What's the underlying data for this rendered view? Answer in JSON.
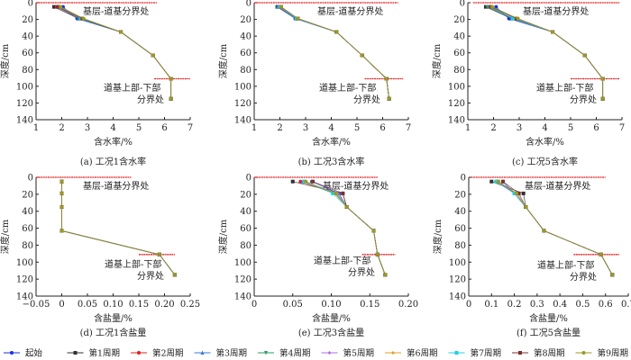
{
  "legend": [
    {
      "name": "起始",
      "color": "#1a2fe0",
      "marker": "circle"
    },
    {
      "name": "第1周期",
      "color": "#303030",
      "marker": "square"
    },
    {
      "name": "第2周期",
      "color": "#e02020",
      "marker": "circle"
    },
    {
      "name": "第3周期",
      "color": "#3a7bd5",
      "marker": "triangle-up"
    },
    {
      "name": "第4周期",
      "color": "#2a9d6a",
      "marker": "triangle-down"
    },
    {
      "name": "第5周期",
      "color": "#b06be0",
      "marker": "diamond"
    },
    {
      "name": "第6周期",
      "color": "#e0a020",
      "marker": "diamond"
    },
    {
      "name": "第7周期",
      "color": "#20d0e0",
      "marker": "square"
    },
    {
      "name": "第8周期",
      "color": "#7a3030",
      "marker": "square"
    },
    {
      "name": "第9周期",
      "color": "#9a9a20",
      "marker": "circle"
    }
  ],
  "chart_data": [
    {
      "type": "line",
      "caption": "(a)  工况1含水率",
      "xlabel": "含水率/%",
      "ylabel": "深度/cm",
      "xlim": [
        1,
        7
      ],
      "xticks": [
        1,
        2,
        3,
        4,
        5,
        6,
        7
      ],
      "xtick_labels": [
        "1",
        "2",
        "3",
        "4",
        "5",
        "6",
        "7"
      ],
      "ylim": [
        0,
        140
      ],
      "yticks": [
        0,
        20,
        40,
        60,
        80,
        100,
        120,
        140
      ],
      "y_inverted": true,
      "depths": [
        5,
        19,
        35,
        63,
        91,
        115
      ],
      "ref_lines": [
        {
          "depth": 0,
          "x": [
            1,
            5.7
          ]
        },
        {
          "depth": 91,
          "x": [
            5.6,
            7
          ]
        }
      ],
      "annotations": [
        "基层-道基分界处",
        "道基上部-下部",
        "分界处"
      ],
      "series": [
        [
          2.05,
          2.6,
          4.3,
          5.55,
          6.25,
          6.25
        ],
        [
          1.7,
          2.65,
          4.3,
          5.55,
          6.25,
          6.25
        ],
        [
          1.8,
          2.7,
          4.3,
          5.55,
          6.25,
          6.25
        ],
        [
          1.85,
          2.65,
          4.3,
          5.55,
          6.25,
          6.25
        ],
        [
          1.9,
          2.75,
          4.3,
          5.55,
          6.25,
          6.25
        ],
        [
          1.9,
          2.8,
          4.3,
          5.55,
          6.25,
          6.25
        ],
        [
          1.95,
          2.85,
          4.3,
          5.55,
          6.25,
          6.25
        ],
        [
          1.9,
          2.75,
          4.3,
          5.55,
          6.25,
          6.25
        ],
        [
          1.85,
          2.8,
          4.3,
          5.55,
          6.25,
          6.25
        ],
        [
          1.95,
          2.85,
          4.3,
          5.55,
          6.25,
          6.25
        ]
      ]
    },
    {
      "type": "line",
      "caption": "(b)  工况3含水率",
      "xlabel": "含水率/%",
      "ylabel": "深度/cm",
      "xlim": [
        1,
        7
      ],
      "xticks": [
        1,
        2,
        3,
        4,
        5,
        6,
        7
      ],
      "xtick_labels": [
        "1",
        "2",
        "3",
        "4",
        "5",
        "6",
        "7"
      ],
      "ylim": [
        0,
        140
      ],
      "yticks": [
        0,
        20,
        40,
        60,
        80,
        100,
        120,
        140
      ],
      "y_inverted": true,
      "depths": [
        5,
        19,
        35,
        63,
        91,
        115
      ],
      "ref_lines": [
        {
          "depth": 0,
          "x": [
            1,
            6.6
          ]
        },
        {
          "depth": 91,
          "x": [
            5.3,
            6.8
          ]
        }
      ],
      "annotations": [
        "基层-道基分界处",
        "道基上部-下部",
        "分界处"
      ],
      "series": [
        [
          1.9,
          2.6,
          4.2,
          5.2,
          6.15,
          6.25
        ],
        [
          1.9,
          2.65,
          4.2,
          5.2,
          6.15,
          6.25
        ],
        [
          1.95,
          2.65,
          4.2,
          5.2,
          6.15,
          6.25
        ],
        [
          1.9,
          2.6,
          4.2,
          5.2,
          6.15,
          6.25
        ],
        [
          2.0,
          2.7,
          4.2,
          5.2,
          6.15,
          6.25
        ],
        [
          2.0,
          2.65,
          4.2,
          5.2,
          6.15,
          6.25
        ],
        [
          2.05,
          2.7,
          4.2,
          5.2,
          6.15,
          6.25
        ],
        [
          2.0,
          2.65,
          4.2,
          5.2,
          6.15,
          6.25
        ],
        [
          2.05,
          2.7,
          4.2,
          5.2,
          6.15,
          6.25
        ],
        [
          2.05,
          2.7,
          4.2,
          5.2,
          6.15,
          6.25
        ]
      ]
    },
    {
      "type": "line",
      "caption": "(c)  工况5含水率",
      "xlabel": "含水率/%",
      "ylabel": "深度/cm",
      "xlim": [
        1,
        7
      ],
      "xticks": [
        1,
        2,
        3,
        4,
        5,
        6,
        7
      ],
      "xtick_labels": [
        "1",
        "2",
        "3",
        "4",
        "5",
        "6",
        "7"
      ],
      "ylim": [
        0,
        140
      ],
      "yticks": [
        0,
        20,
        40,
        60,
        80,
        100,
        120,
        140
      ],
      "y_inverted": true,
      "depths": [
        5,
        19,
        35,
        63,
        91,
        115
      ],
      "ref_lines": [
        {
          "depth": 0,
          "x": [
            1.2,
            6.9
          ]
        },
        {
          "depth": 91,
          "x": [
            5.0,
            6.9
          ]
        }
      ],
      "annotations": [
        "基层-道基分界处",
        "道基上部-下部",
        "分界处"
      ],
      "series": [
        [
          2.1,
          2.6,
          4.3,
          5.55,
          6.25,
          6.25
        ],
        [
          1.7,
          2.7,
          4.3,
          5.55,
          6.25,
          6.25
        ],
        [
          1.8,
          2.75,
          4.3,
          5.55,
          6.25,
          6.25
        ],
        [
          1.85,
          2.7,
          4.3,
          5.55,
          6.25,
          6.25
        ],
        [
          1.75,
          2.8,
          4.3,
          5.55,
          6.25,
          6.25
        ],
        [
          1.9,
          2.85,
          4.3,
          5.55,
          6.25,
          6.25
        ],
        [
          1.95,
          2.9,
          4.3,
          5.55,
          6.25,
          6.25
        ],
        [
          1.9,
          2.75,
          4.3,
          5.55,
          6.25,
          6.25
        ],
        [
          1.9,
          2.9,
          4.3,
          5.55,
          6.25,
          6.25
        ],
        [
          1.95,
          2.95,
          4.3,
          5.55,
          6.25,
          6.25
        ]
      ]
    },
    {
      "type": "line",
      "caption": "(d)  工况1含盐量",
      "xlabel": "含盐量/%",
      "ylabel": "深度/cm",
      "xlim": [
        -0.05,
        0.25
      ],
      "xticks": [
        -0.05,
        0,
        0.05,
        0.1,
        0.15,
        0.2,
        0.25
      ],
      "xtick_labels": [
        "−0.05",
        "0",
        "0.05",
        "0.10",
        "0.15",
        "0.20",
        "0.25"
      ],
      "ylim": [
        0,
        140
      ],
      "yticks": [
        0,
        20,
        40,
        60,
        80,
        100,
        120,
        140
      ],
      "y_inverted": true,
      "depths": [
        5,
        19,
        35,
        63,
        91,
        115
      ],
      "ref_lines": [
        {
          "depth": 0,
          "x": [
            -0.05,
            0.135
          ]
        },
        {
          "depth": 91,
          "x": [
            0.15,
            0.22
          ]
        }
      ],
      "annotations": [
        "基层-道基分界处",
        "道基上部-下部",
        "分界处"
      ],
      "series": [
        [
          0,
          0,
          0,
          0,
          0.19,
          0.22
        ],
        [
          0,
          0,
          0,
          0,
          0.19,
          0.22
        ],
        [
          0,
          0,
          0,
          0,
          0.19,
          0.22
        ],
        [
          0,
          0,
          0,
          0,
          0.19,
          0.22
        ],
        [
          0,
          0,
          0,
          0,
          0.19,
          0.22
        ],
        [
          0,
          0,
          0,
          0,
          0.19,
          0.22
        ],
        [
          0,
          0,
          0,
          0,
          0.19,
          0.22
        ],
        [
          0,
          0,
          0,
          0,
          0.19,
          0.22
        ],
        [
          0,
          0,
          0,
          0,
          0.19,
          0.22
        ],
        [
          0,
          0,
          0,
          0,
          0.19,
          0.22
        ]
      ]
    },
    {
      "type": "line",
      "caption": "(e)  工况3含盐量",
      "xlabel": "含盐量/%",
      "ylabel": "深度/cm",
      "xlim": [
        0,
        0.2
      ],
      "xticks": [
        0,
        0.05,
        0.1,
        0.15,
        0.2
      ],
      "xtick_labels": [
        "0",
        "0.05",
        "0.10",
        "0.15",
        "0.20"
      ],
      "ylim": [
        0,
        140
      ],
      "yticks": [
        0,
        20,
        40,
        60,
        80,
        100,
        120,
        140
      ],
      "y_inverted": true,
      "depths": [
        5,
        19,
        35,
        63,
        91,
        115
      ],
      "ref_lines": [
        {
          "depth": 0,
          "x": [
            0,
            0.16
          ]
        },
        {
          "depth": 91,
          "x": [
            0.14,
            0.183
          ]
        }
      ],
      "annotations": [
        "基层-道基分界处",
        "道基上部-下部",
        "分界处"
      ],
      "series": [
        [
          0.075,
          0.11,
          0.12,
          0.155,
          0.16,
          0.17
        ],
        [
          0.05,
          0.115,
          0.12,
          0.155,
          0.16,
          0.17
        ],
        [
          0.06,
          0.105,
          0.12,
          0.155,
          0.16,
          0.17
        ],
        [
          0.063,
          0.11,
          0.12,
          0.155,
          0.16,
          0.17
        ],
        [
          0.065,
          0.105,
          0.12,
          0.155,
          0.16,
          0.17
        ],
        [
          0.065,
          0.108,
          0.12,
          0.155,
          0.16,
          0.17
        ],
        [
          0.066,
          0.107,
          0.12,
          0.155,
          0.16,
          0.17
        ],
        [
          0.065,
          0.102,
          0.12,
          0.155,
          0.16,
          0.17
        ],
        [
          0.076,
          0.115,
          0.12,
          0.155,
          0.16,
          0.17
        ],
        [
          0.067,
          0.106,
          0.12,
          0.155,
          0.16,
          0.17
        ]
      ]
    },
    {
      "type": "line",
      "caption": "(f)  工况5含盐量",
      "xlabel": "含盐量/%",
      "ylabel": "深度/cm",
      "xlim": [
        0,
        0.7
      ],
      "xticks": [
        0,
        0.1,
        0.2,
        0.3,
        0.4,
        0.5,
        0.6,
        0.7
      ],
      "xtick_labels": [
        "0",
        "0.1",
        "0.2",
        "0.3",
        "0.4",
        "0.5",
        "0.6",
        "0.7"
      ],
      "ylim": [
        0,
        140
      ],
      "yticks": [
        0,
        20,
        40,
        60,
        80,
        100,
        120,
        140
      ],
      "y_inverted": true,
      "depths": [
        5,
        19,
        35,
        63,
        91,
        115
      ],
      "ref_lines": [
        {
          "depth": 0,
          "x": [
            0.01,
            0.6
          ]
        },
        {
          "depth": 91,
          "x": [
            0.46,
            0.66
          ]
        }
      ],
      "annotations": [
        "基层-道基分界处",
        "道基上部-下部",
        "分界处"
      ],
      "series": [
        [
          0.15,
          0.2,
          0.25,
          0.33,
          0.58,
          0.63
        ],
        [
          0.1,
          0.24,
          0.25,
          0.33,
          0.58,
          0.63
        ],
        [
          0.12,
          0.21,
          0.25,
          0.33,
          0.58,
          0.63
        ],
        [
          0.13,
          0.2,
          0.25,
          0.33,
          0.58,
          0.63
        ],
        [
          0.13,
          0.21,
          0.25,
          0.33,
          0.58,
          0.63
        ],
        [
          0.12,
          0.2,
          0.25,
          0.33,
          0.58,
          0.63
        ],
        [
          0.13,
          0.21,
          0.25,
          0.33,
          0.58,
          0.63
        ],
        [
          0.12,
          0.2,
          0.25,
          0.33,
          0.58,
          0.63
        ],
        [
          0.15,
          0.22,
          0.25,
          0.33,
          0.58,
          0.63
        ],
        [
          0.13,
          0.21,
          0.25,
          0.33,
          0.58,
          0.63
        ]
      ]
    }
  ]
}
